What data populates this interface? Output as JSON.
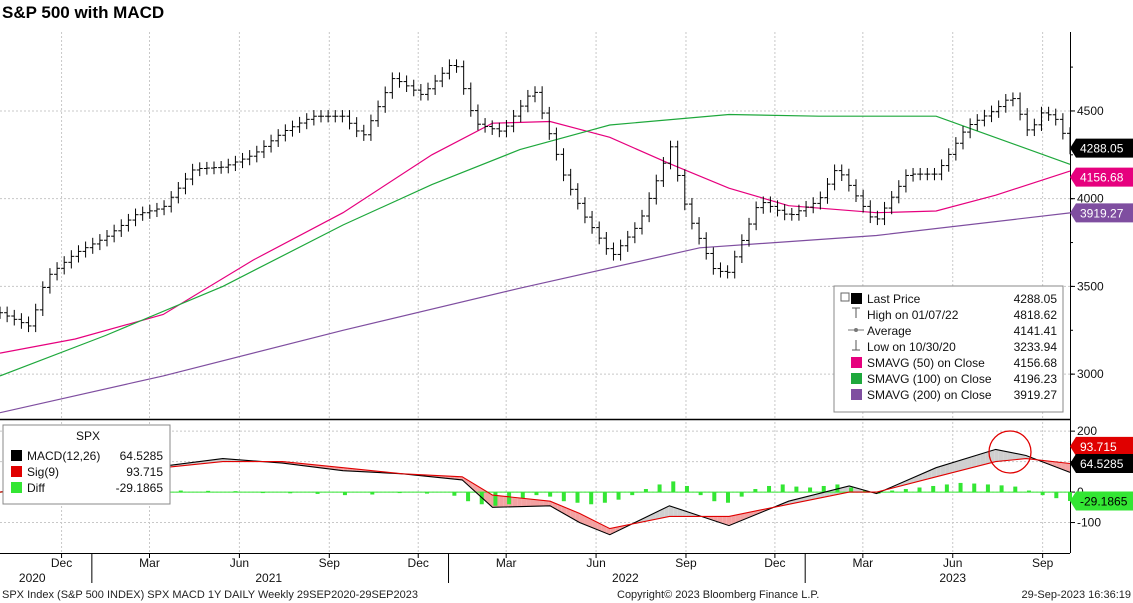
{
  "title": "S&P 500 with MACD",
  "chart_data": {
    "type": "line",
    "price_panel": {
      "series": [
        {
          "name": "Last Price",
          "color": "#000000",
          "points": [
            [
              "2020-09-29",
              3350
            ],
            [
              "2020-10-30",
              3270
            ],
            [
              "2020-11-15",
              3550
            ],
            [
              "2020-12-15",
              3690
            ],
            [
              "2021-01-15",
              3780
            ],
            [
              "2021-02-15",
              3910
            ],
            [
              "2021-03-15",
              3950
            ],
            [
              "2021-04-15",
              4170
            ],
            [
              "2021-05-15",
              4180
            ],
            [
              "2021-06-15",
              4250
            ],
            [
              "2021-07-15",
              4380
            ],
            [
              "2021-08-15",
              4470
            ],
            [
              "2021-09-15",
              4470
            ],
            [
              "2021-10-05",
              4350
            ],
            [
              "2021-11-05",
              4690
            ],
            [
              "2021-12-05",
              4590
            ],
            [
              "2022-01-07",
              4790
            ],
            [
              "2022-01-28",
              4430
            ],
            [
              "2022-02-25",
              4380
            ],
            [
              "2022-03-29",
              4630
            ],
            [
              "2022-04-29",
              4130
            ],
            [
              "2022-05-20",
              3900
            ],
            [
              "2022-06-17",
              3670
            ],
            [
              "2022-07-15",
              3860
            ],
            [
              "2022-08-16",
              4300
            ],
            [
              "2022-09-02",
              3920
            ],
            [
              "2022-09-30",
              3590
            ],
            [
              "2022-10-14",
              3580
            ],
            [
              "2022-11-15",
              3990
            ],
            [
              "2022-12-15",
              3900
            ],
            [
              "2023-01-15",
              3990
            ],
            [
              "2023-02-02",
              4180
            ],
            [
              "2023-03-13",
              3860
            ],
            [
              "2023-04-15",
              4140
            ],
            [
              "2023-05-15",
              4140
            ],
            [
              "2023-06-15",
              4410
            ],
            [
              "2023-07-15",
              4510
            ],
            [
              "2023-07-31",
              4590
            ],
            [
              "2023-08-18",
              4370
            ],
            [
              "2023-09-01",
              4500
            ],
            [
              "2023-09-15",
              4450
            ],
            [
              "2023-09-29",
              4288
            ]
          ]
        },
        {
          "name": "SMAVG (50)",
          "color": "#e6007e",
          "points": [
            [
              "2020-09-29",
              3120
            ],
            [
              "2020-12-15",
              3200
            ],
            [
              "2021-03-15",
              3340
            ],
            [
              "2021-06-15",
              3650
            ],
            [
              "2021-09-15",
              3920
            ],
            [
              "2021-12-15",
              4250
            ],
            [
              "2022-02-15",
              4430
            ],
            [
              "2022-04-15",
              4440
            ],
            [
              "2022-06-15",
              4350
            ],
            [
              "2022-08-15",
              4200
            ],
            [
              "2022-10-15",
              4060
            ],
            [
              "2022-12-15",
              3960
            ],
            [
              "2023-03-15",
              3920
            ],
            [
              "2023-05-15",
              3930
            ],
            [
              "2023-07-15",
              4020
            ],
            [
              "2023-09-29",
              4157
            ]
          ]
        },
        {
          "name": "SMAVG (100)",
          "color": "#1ea83c",
          "points": [
            [
              "2020-09-29",
              2990
            ],
            [
              "2021-01-15",
              3220
            ],
            [
              "2021-05-15",
              3500
            ],
            [
              "2021-09-15",
              3850
            ],
            [
              "2021-12-15",
              4080
            ],
            [
              "2022-03-15",
              4280
            ],
            [
              "2022-06-15",
              4420
            ],
            [
              "2022-10-15",
              4480
            ],
            [
              "2023-01-15",
              4470
            ],
            [
              "2023-05-15",
              4470
            ],
            [
              "2023-09-29",
              4196
            ]
          ]
        },
        {
          "name": "SMAVG (200)",
          "color": "#7f4ea0",
          "points": [
            [
              "2020-09-29",
              2780
            ],
            [
              "2021-03-15",
              2990
            ],
            [
              "2021-09-15",
              3250
            ],
            [
              "2022-03-15",
              3490
            ],
            [
              "2022-09-15",
              3720
            ],
            [
              "2023-03-15",
              3790
            ],
            [
              "2023-09-29",
              3919
            ]
          ]
        }
      ],
      "ylim": [
        2750,
        4950
      ],
      "yticks": [
        "3000",
        "3500",
        "4000",
        "4500"
      ],
      "price_labels": [
        {
          "value": "4288.05",
          "bg": "#000000",
          "fg": "#ffffff"
        },
        {
          "value": "4156.68",
          "bg": "#e6007e",
          "fg": "#ffffff"
        },
        {
          "value": "3919.27",
          "bg": "#7f4ea0",
          "fg": "#ffffff"
        }
      ],
      "legend": {
        "position": "bottom-right",
        "rows": [
          {
            "label": "Last Price",
            "value": "4288.05",
            "marker": "#000000",
            "kind": "box"
          },
          {
            "label": "High on 01/07/22",
            "value": "4818.62",
            "marker": "#555555",
            "kind": "high"
          },
          {
            "label": "Average",
            "value": "4141.41",
            "marker": "#777777",
            "kind": "avg"
          },
          {
            "label": "Low on 10/30/20",
            "value": "3233.94",
            "marker": "#555555",
            "kind": "low"
          },
          {
            "label": "SMAVG (50)   on Close",
            "value": "4156.68",
            "marker": "#e6007e",
            "kind": "square"
          },
          {
            "label": "SMAVG (100)   on Close",
            "value": "4196.23",
            "marker": "#1ea83c",
            "kind": "square"
          },
          {
            "label": "SMAVG (200)   on Close",
            "value": "3919.27",
            "marker": "#7f4ea0",
            "kind": "square"
          }
        ]
      }
    },
    "macd_panel": {
      "series": [
        {
          "name": "MACD(12,26)",
          "color": "#000000",
          "points": [
            [
              "2020-09-29",
              0
            ],
            [
              "2020-11-15",
              20
            ],
            [
              "2021-01-15",
              70
            ],
            [
              "2021-03-15",
              85
            ],
            [
              "2021-05-15",
              110
            ],
            [
              "2021-07-15",
              95
            ],
            [
              "2021-09-15",
              70
            ],
            [
              "2021-11-15",
              60
            ],
            [
              "2022-01-15",
              40
            ],
            [
              "2022-02-15",
              -50
            ],
            [
              "2022-04-15",
              -45
            ],
            [
              "2022-05-15",
              -100
            ],
            [
              "2022-06-15",
              -140
            ],
            [
              "2022-08-15",
              -45
            ],
            [
              "2022-10-15",
              -110
            ],
            [
              "2022-12-15",
              -30
            ],
            [
              "2023-02-15",
              20
            ],
            [
              "2023-03-15",
              -5
            ],
            [
              "2023-05-15",
              80
            ],
            [
              "2023-07-15",
              140
            ],
            [
              "2023-08-15",
              120
            ],
            [
              "2023-09-29",
              64.5285
            ]
          ]
        },
        {
          "name": "Sig(9)",
          "color": "#e00000",
          "points": [
            [
              "2020-09-29",
              0
            ],
            [
              "2020-11-15",
              10
            ],
            [
              "2021-01-15",
              50
            ],
            [
              "2021-03-15",
              80
            ],
            [
              "2021-05-15",
              100
            ],
            [
              "2021-07-15",
              100
            ],
            [
              "2021-09-15",
              80
            ],
            [
              "2021-11-15",
              60
            ],
            [
              "2022-01-15",
              50
            ],
            [
              "2022-02-15",
              -10
            ],
            [
              "2022-04-15",
              -30
            ],
            [
              "2022-05-15",
              -70
            ],
            [
              "2022-06-15",
              -120
            ],
            [
              "2022-08-15",
              -80
            ],
            [
              "2022-10-15",
              -80
            ],
            [
              "2022-12-15",
              -40
            ],
            [
              "2023-02-15",
              0
            ],
            [
              "2023-03-15",
              0
            ],
            [
              "2023-05-15",
              50
            ],
            [
              "2023-07-15",
              100
            ],
            [
              "2023-08-15",
              110
            ],
            [
              "2023-09-29",
              93.715
            ]
          ]
        }
      ],
      "diff_bars": [
        [
          "2020-10-16",
          -5
        ],
        [
          "2020-11-13",
          8
        ],
        [
          "2020-12-11",
          10
        ],
        [
          "2021-01-08",
          12
        ],
        [
          "2021-02-05",
          8
        ],
        [
          "2021-03-05",
          6
        ],
        [
          "2021-04-02",
          5
        ],
        [
          "2021-04-30",
          4
        ],
        [
          "2021-05-28",
          3
        ],
        [
          "2021-06-25",
          -2
        ],
        [
          "2021-07-23",
          -4
        ],
        [
          "2021-08-20",
          -6
        ],
        [
          "2021-09-17",
          -10
        ],
        [
          "2021-10-15",
          -8
        ],
        [
          "2021-11-12",
          -2
        ],
        [
          "2021-12-10",
          -5
        ],
        [
          "2022-01-07",
          -12
        ],
        [
          "2022-01-21",
          -30
        ],
        [
          "2022-02-04",
          -40
        ],
        [
          "2022-02-18",
          -45
        ],
        [
          "2022-03-04",
          -40
        ],
        [
          "2022-03-18",
          -20
        ],
        [
          "2022-04-01",
          -10
        ],
        [
          "2022-04-15",
          -15
        ],
        [
          "2022-04-29",
          -30
        ],
        [
          "2022-05-13",
          -35
        ],
        [
          "2022-05-27",
          -40
        ],
        [
          "2022-06-10",
          -35
        ],
        [
          "2022-06-24",
          -25
        ],
        [
          "2022-07-08",
          -10
        ],
        [
          "2022-07-22",
          10
        ],
        [
          "2022-08-05",
          25
        ],
        [
          "2022-08-19",
          35
        ],
        [
          "2022-09-02",
          20
        ],
        [
          "2022-09-16",
          -10
        ],
        [
          "2022-09-30",
          -30
        ],
        [
          "2022-10-14",
          -35
        ],
        [
          "2022-10-28",
          -15
        ],
        [
          "2022-11-11",
          10
        ],
        [
          "2022-11-25",
          20
        ],
        [
          "2022-12-09",
          25
        ],
        [
          "2022-12-23",
          18
        ],
        [
          "2023-01-06",
          15
        ],
        [
          "2023-01-20",
          20
        ],
        [
          "2023-02-03",
          25
        ],
        [
          "2023-02-17",
          15
        ],
        [
          "2023-03-03",
          5
        ],
        [
          "2023-03-17",
          -5
        ],
        [
          "2023-03-31",
          5
        ],
        [
          "2023-04-14",
          10
        ],
        [
          "2023-04-28",
          15
        ],
        [
          "2023-05-12",
          20
        ],
        [
          "2023-05-26",
          25
        ],
        [
          "2023-06-09",
          30
        ],
        [
          "2023-06-23",
          28
        ],
        [
          "2023-07-07",
          25
        ],
        [
          "2023-07-21",
          22
        ],
        [
          "2023-08-04",
          18
        ],
        [
          "2023-08-18",
          5
        ],
        [
          "2023-09-01",
          -10
        ],
        [
          "2023-09-15",
          -20
        ],
        [
          "2023-09-29",
          -29.1865
        ]
      ],
      "ylim": [
        -200,
        230
      ],
      "yticks": [
        "200",
        "100",
        "0",
        "-100"
      ],
      "price_labels": [
        {
          "value": "93.715",
          "bg": "#e00000",
          "fg": "#ffffff"
        },
        {
          "value": "64.5285",
          "bg": "#000000",
          "fg": "#ffffff"
        },
        {
          "value": "-29.1865",
          "bg": "#33e633",
          "fg": "#000000"
        }
      ],
      "legend": {
        "position": "top-left",
        "heading": "SPX",
        "rows": [
          {
            "label": "MACD(12,26)",
            "value": "64.5285",
            "marker": "#000000"
          },
          {
            "label": "Sig(9)",
            "value": "93.715",
            "marker": "#e00000"
          },
          {
            "label": "Diff",
            "value": "-29.1865",
            "marker": "#33e633"
          }
        ]
      }
    },
    "xlim": [
      "2020-09-29",
      "2023-09-29"
    ],
    "x_month_ticks": [
      {
        "label": "Dec",
        "date": "2020-12-01"
      },
      {
        "label": "Mar",
        "date": "2021-03-01"
      },
      {
        "label": "Jun",
        "date": "2021-06-01"
      },
      {
        "label": "Sep",
        "date": "2021-09-01"
      },
      {
        "label": "Dec",
        "date": "2021-12-01"
      },
      {
        "label": "Mar",
        "date": "2022-03-01"
      },
      {
        "label": "Jun",
        "date": "2022-06-01"
      },
      {
        "label": "Sep",
        "date": "2022-09-01"
      },
      {
        "label": "Dec",
        "date": "2022-12-01"
      },
      {
        "label": "Mar",
        "date": "2023-03-01"
      },
      {
        "label": "Jun",
        "date": "2023-06-01"
      },
      {
        "label": "Sep",
        "date": "2023-09-01"
      }
    ],
    "x_year_ticks": [
      {
        "label": "2020",
        "date": "2020-11-01"
      },
      {
        "label": "2021",
        "date": "2021-07-01"
      },
      {
        "label": "2022",
        "date": "2022-07-01"
      },
      {
        "label": "2023",
        "date": "2023-06-01"
      }
    ],
    "grid": true
  },
  "footer": {
    "left": "SPX Index (S&P 500 INDEX) SPX MACD 1Y DAILY  Weekly 29SEP2020-29SEP2023",
    "center": "Copyright© 2023 Bloomberg Finance L.P.",
    "right": "29-Sep-2023 16:36:19"
  }
}
